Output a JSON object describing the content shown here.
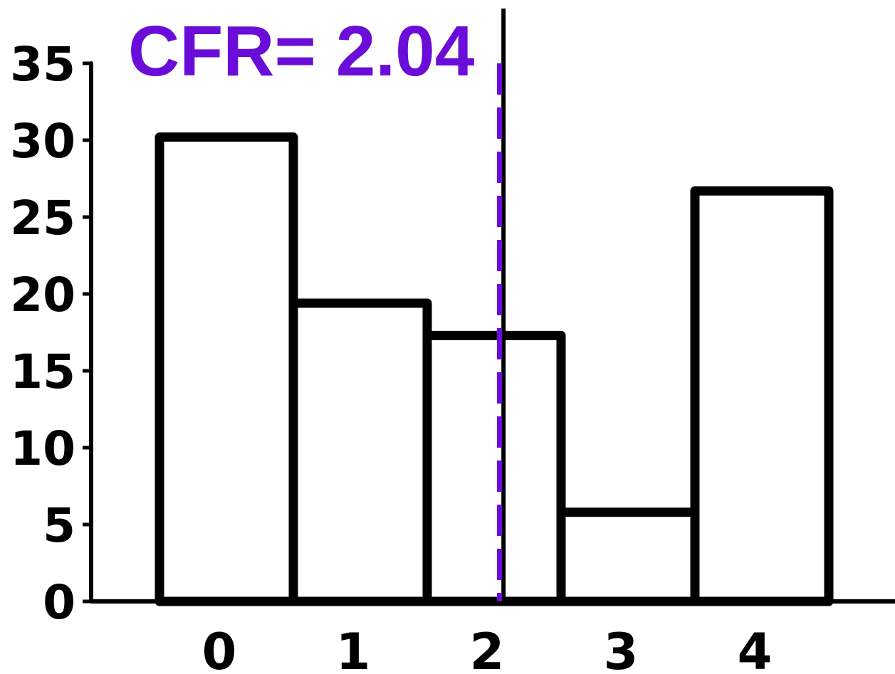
{
  "chart_data": {
    "type": "bar",
    "categories": [
      "0",
      "1",
      "2",
      "3",
      "4"
    ],
    "values": [
      30.2,
      19.4,
      17.3,
      5.8,
      26.7
    ],
    "title": "",
    "xlabel": "",
    "ylabel": "",
    "ylim": [
      0,
      35
    ],
    "yticks": [
      "0",
      "5",
      "10",
      "15",
      "20",
      "25",
      "30",
      "35"
    ],
    "grid": false,
    "annotation": {
      "text": "CFR= 2.04",
      "x_value": 2.04,
      "color": "#6a0dd8"
    },
    "solid_reference_line_x": 2.07,
    "bar_fill": "#ffffff",
    "bar_edge": "#000000"
  }
}
